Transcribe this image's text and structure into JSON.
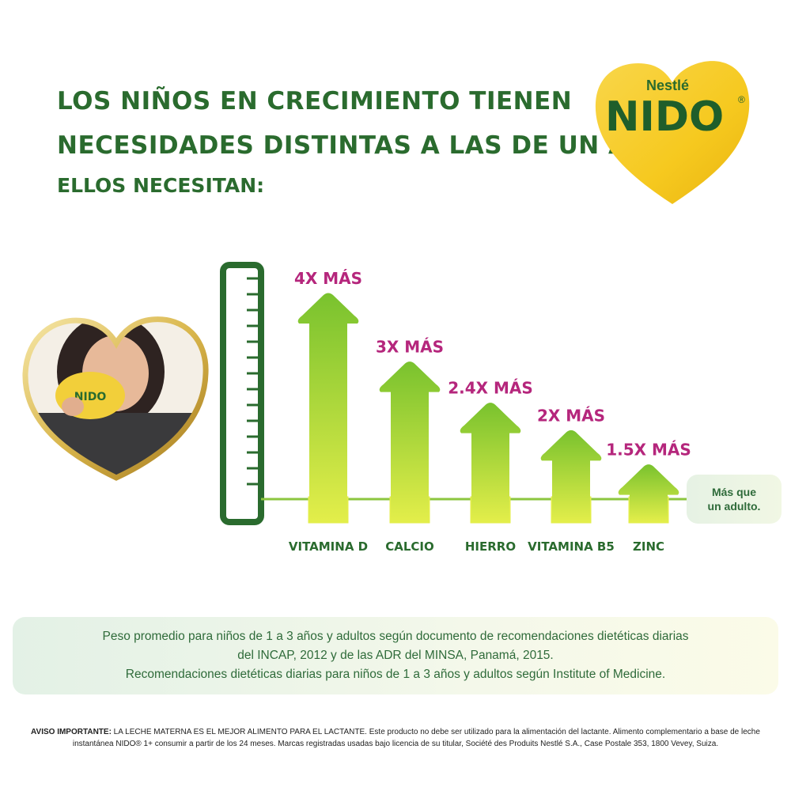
{
  "headline": {
    "line1": "Los niños en crecimiento tienen",
    "line2": "necesidades distintas a las de un adulto.",
    "line3": "Ellos necesitan:"
  },
  "logo": {
    "top": "Nestlé",
    "main": "NIDO",
    "registered": "®",
    "cup_text": "NIDO"
  },
  "chart_data": {
    "type": "bar",
    "categories": [
      "VITAMINA D",
      "CALCIO",
      "HIERRO",
      "VITAMINA B5",
      "ZINC"
    ],
    "values": [
      4,
      3,
      2.4,
      2,
      1.5
    ],
    "data_labels": [
      "4X MÁS",
      "3X MÁS",
      "2.4X MÁS",
      "2X MÁS",
      "1.5X MÁS"
    ],
    "baseline_label": [
      "Más que",
      "un adulto."
    ],
    "ylim": [
      1,
      4.3
    ],
    "colors": {
      "bar_top": "#79c22e",
      "bar_bottom": "#e3ee4a",
      "label": "#b5267c",
      "axis": "#2a6b2e"
    }
  },
  "footnote": {
    "line1": "Peso promedio para niños de 1 a 3 años y adultos según documento de recomendaciones dietéticas diarias",
    "line2": "del INCAP, 2012 y de las ADR del MINSA, Panamá, 2015.",
    "line3": "Recomendaciones dietéticas diarias para niños de 1 a 3 años y adultos según Institute of Medicine."
  },
  "disclaimer": {
    "bold": "AVISO  IMPORTANTE:",
    "text": " LA LECHE MATERNA ES EL MEJOR ALIMENTO PARA EL LACTANTE. Este producto no debe ser utilizado para la alimentación del lactante. Alimento complementario a base de leche instantánea NIDO® 1+ consumir a partir de los 24 meses. Marcas registradas usadas bajo licencia de su titular, Société des Produits Nestlé S.A., Case Postale 353, 1800 Vevey, Suiza."
  }
}
